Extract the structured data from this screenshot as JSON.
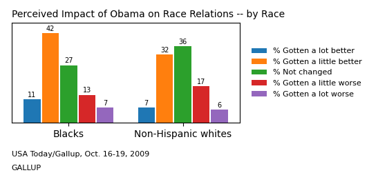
{
  "chart_data": {
    "type": "bar",
    "title": "Perceived Impact of Obama on Race Relations -- by Race",
    "categories": [
      "Blacks",
      "Non-Hispanic whites"
    ],
    "series": [
      {
        "name": "% Gotten a lot better",
        "values": [
          11,
          7
        ]
      },
      {
        "name": "% Gotten a little better",
        "values": [
          42,
          32
        ]
      },
      {
        "name": "% Not changed",
        "values": [
          27,
          36
        ]
      },
      {
        "name": "% Gotten a little worse",
        "values": [
          13,
          17
        ]
      },
      {
        "name": "% Gotten a lot worse",
        "values": [
          7,
          6
        ]
      }
    ],
    "ylim": [
      0,
      47
    ],
    "tick_labels": "x",
    "data_labels": true,
    "legend": "center left",
    "annotations": [
      "USA Today/Gallup, Oct. 16-19, 2009",
      "GALLUP"
    ]
  }
}
